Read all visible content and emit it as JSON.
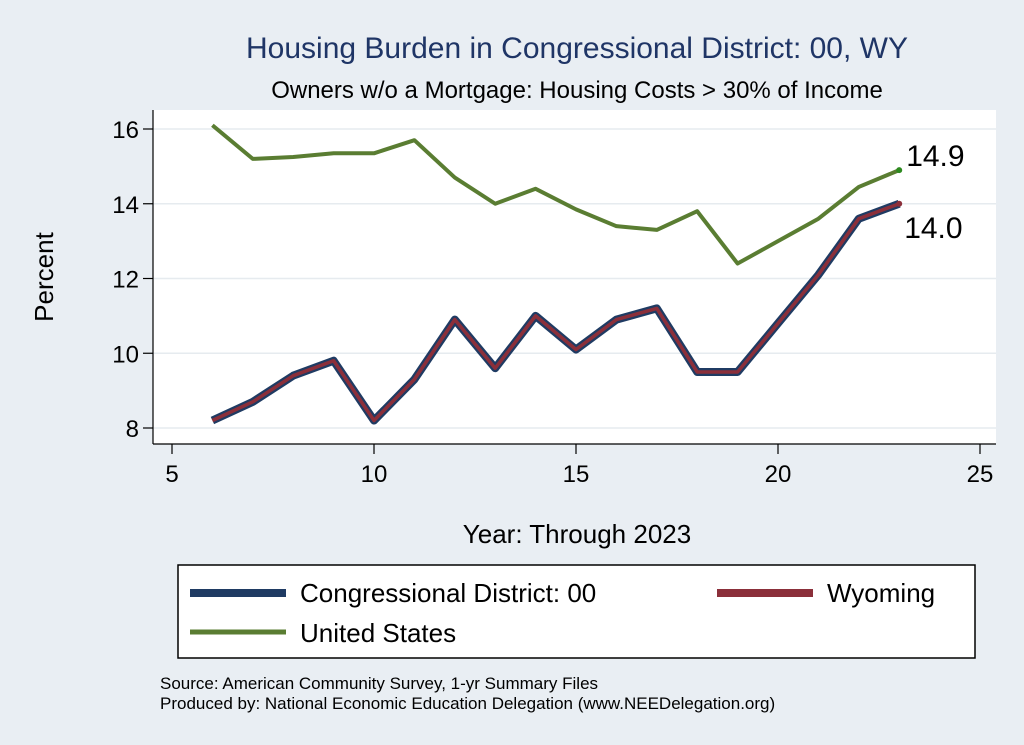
{
  "chart_data": {
    "type": "line",
    "title": "Housing Burden in Congressional District:  00, WY",
    "subtitle": "Owners w/o a Mortgage: Housing Costs > 30% of Income",
    "xlabel": "Year: Through 2023",
    "ylabel": "Percent",
    "xlim": [
      5,
      25
    ],
    "ylim": [
      7.8,
      16.5
    ],
    "xticks": [
      5,
      10,
      15,
      20,
      25
    ],
    "yticks": [
      8,
      10,
      12,
      14,
      16
    ],
    "grid": "horizontal",
    "x": [
      6,
      7,
      8,
      9,
      10,
      11,
      12,
      13,
      14,
      15,
      16,
      17,
      18,
      19,
      20,
      21,
      22,
      23
    ],
    "series": [
      {
        "name": "Congressional District:  00",
        "color": "#1f3b63",
        "values": [
          8.2,
          8.7,
          9.4,
          9.8,
          8.2,
          9.3,
          10.9,
          9.6,
          11.0,
          10.1,
          10.9,
          11.2,
          9.5,
          9.5,
          10.8,
          12.1,
          13.6,
          14.0
        ]
      },
      {
        "name": "Wyoming",
        "color": "#8b2f3a",
        "values": [
          8.2,
          8.7,
          9.4,
          9.8,
          8.2,
          9.3,
          10.9,
          9.6,
          11.0,
          10.1,
          10.9,
          11.2,
          9.5,
          9.5,
          10.8,
          12.1,
          13.6,
          14.0
        ]
      },
      {
        "name": "United States",
        "color": "#5a7d32",
        "values": [
          16.1,
          15.2,
          15.25,
          15.35,
          15.35,
          15.7,
          14.7,
          14.0,
          14.4,
          13.85,
          13.4,
          13.3,
          13.8,
          12.4,
          13.0,
          13.6,
          14.45,
          14.9
        ]
      }
    ],
    "end_labels": [
      {
        "text": "14.9",
        "series": "United States"
      },
      {
        "text": "14.0",
        "series": "Wyoming"
      }
    ],
    "legend_position": "bottom"
  },
  "source": {
    "line1": "Source: American Community Survey, 1-yr Summary Files",
    "line2": "Produced by: National Economic Education Delegation (www.NEEDelegation.org)"
  },
  "colors": {
    "background": "#e9eef3",
    "plot_background": "#ffffff",
    "grid": "#e6ebef",
    "title": "#1f3566"
  }
}
